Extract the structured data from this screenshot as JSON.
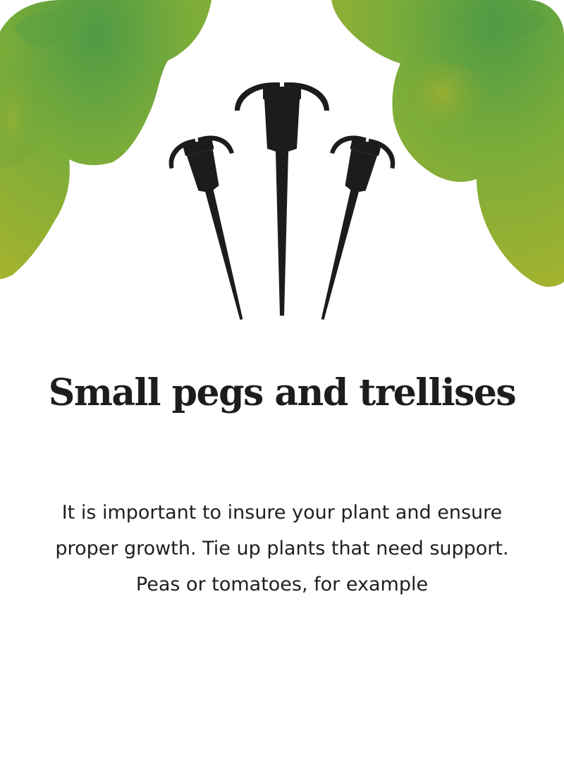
{
  "card": {
    "title": "Small pegs and trellises",
    "description": "It is important to insure your plant and ensure proper growth. Tie up plants that need support. Peas or tomatoes, for example"
  },
  "illustration": {
    "foliage_icon": "leafy-bush-icon",
    "pegs_icon": "garden-peg-icon"
  },
  "colors": {
    "foliage_dark": "#4f9a45",
    "foliage_mid": "#79ac3a",
    "foliage_light": "#a6b32f",
    "peg": "#1c1c1c",
    "text": "#1d1d1b",
    "background": "#ffffff"
  }
}
